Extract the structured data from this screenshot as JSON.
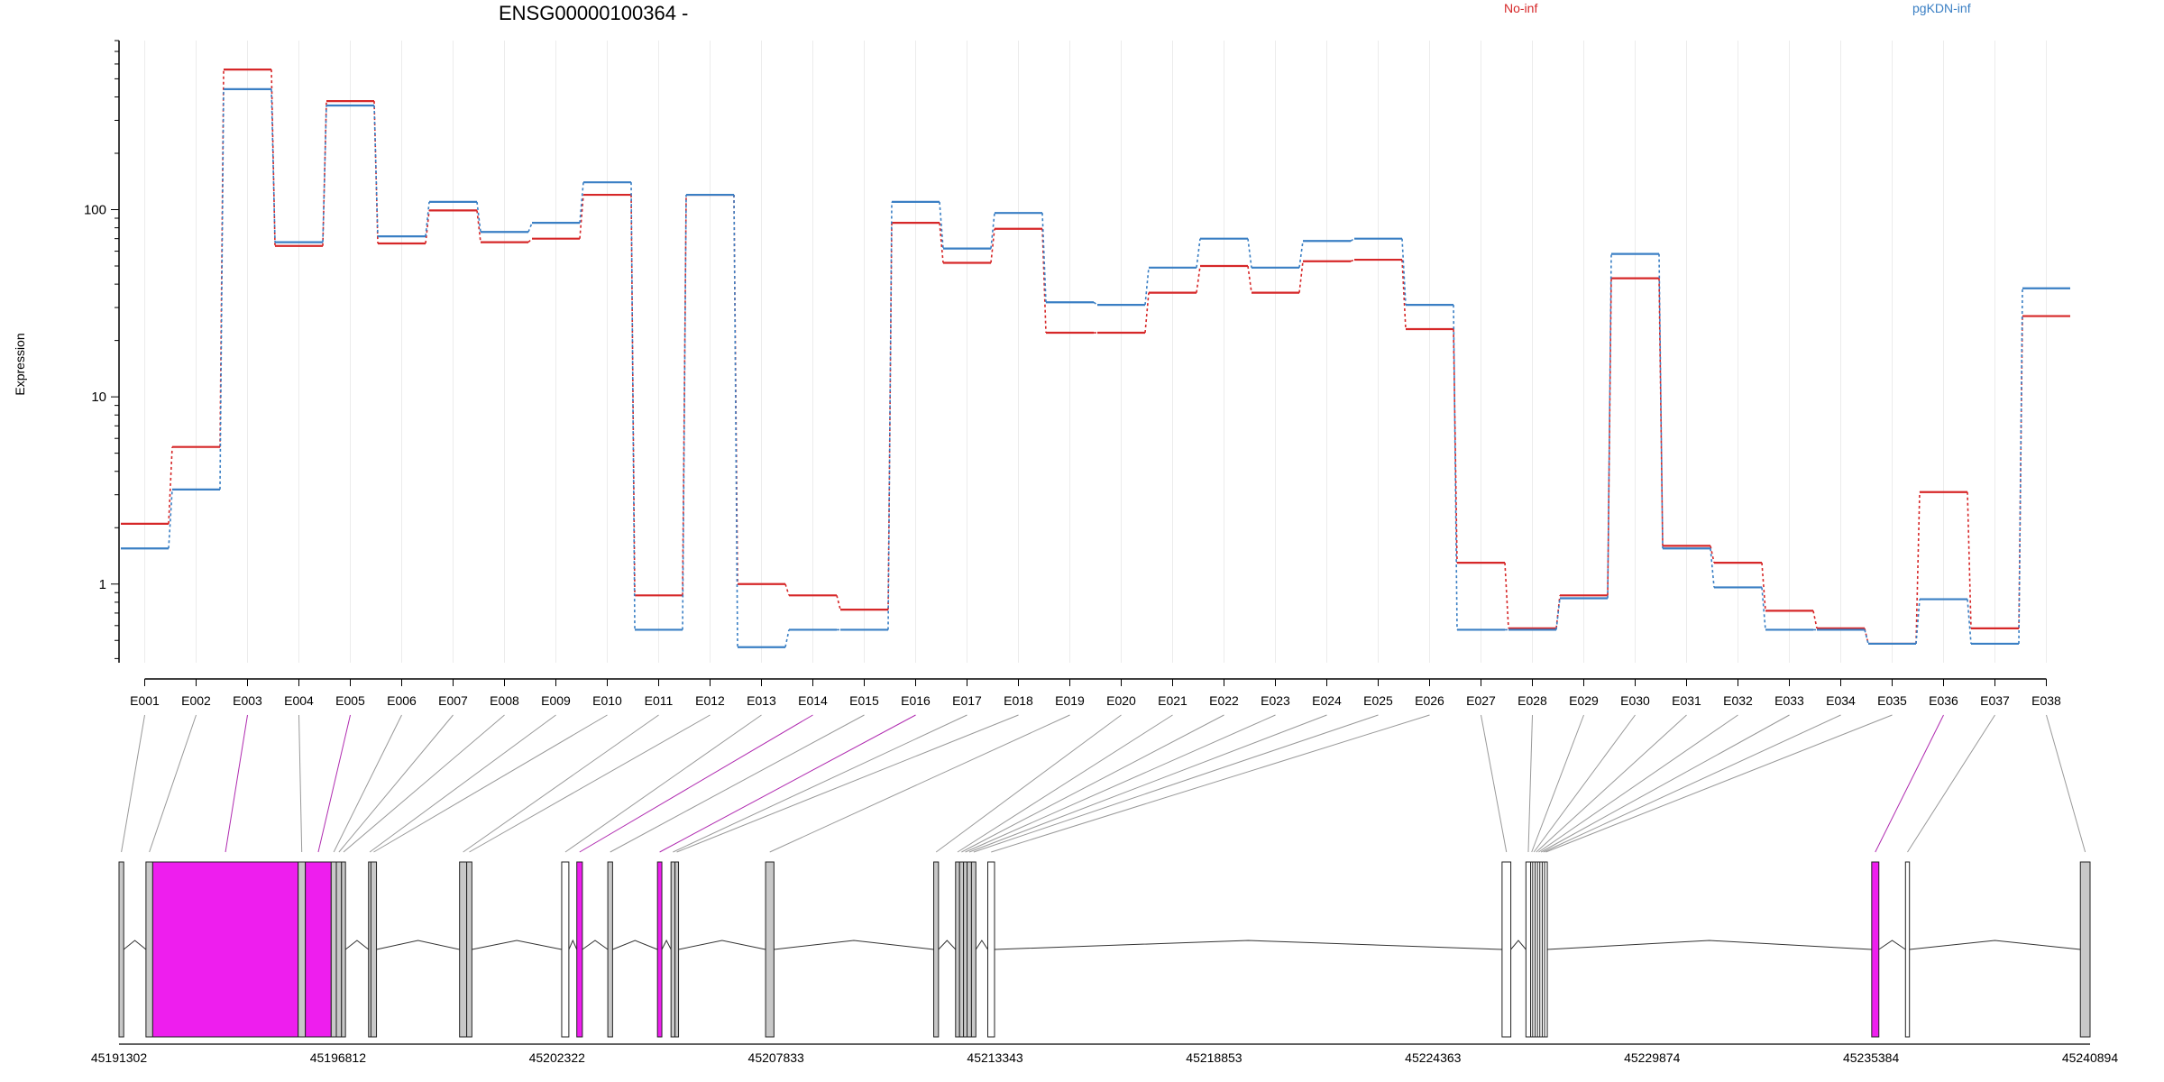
{
  "title": "ENSG00000100364 -",
  "legend": [
    {
      "label": "No-inf",
      "color": "#d62728"
    },
    {
      "label": "pgKDN-inf",
      "color": "#3a7fc4"
    }
  ],
  "chart_data": {
    "type": "line",
    "step": true,
    "ylabel": "Expression",
    "yscale": "log",
    "ylim": [
      0.38,
      800
    ],
    "yticks": [
      {
        "value": 1,
        "label": "1"
      },
      {
        "value": 10,
        "label": "10"
      },
      {
        "value": 100,
        "label": "100"
      }
    ],
    "categories": [
      "E001",
      "E002",
      "E003",
      "E004",
      "E005",
      "E006",
      "E007",
      "E008",
      "E009",
      "E010",
      "E011",
      "E012",
      "E013",
      "E014",
      "E015",
      "E016",
      "E017",
      "E018",
      "E019",
      "E020",
      "E021",
      "E022",
      "E023",
      "E024",
      "E025",
      "E026",
      "E027",
      "E028",
      "E029",
      "E030",
      "E031",
      "E032",
      "E033",
      "E034",
      "E035",
      "E036",
      "E037",
      "E038"
    ],
    "series": [
      {
        "name": "No-inf",
        "color": "#d62728",
        "values": [
          2.1,
          5.4,
          560,
          64,
          380,
          66,
          99,
          67,
          70,
          120,
          0.87,
          120,
          1.0,
          0.87,
          0.73,
          85,
          52,
          79,
          22,
          22,
          36,
          50,
          36,
          53,
          54,
          23,
          1.3,
          0.58,
          0.87,
          43,
          1.6,
          1.3,
          0.72,
          0.58,
          0.48,
          3.1,
          0.58,
          27
        ]
      },
      {
        "name": "pgKDN-inf",
        "color": "#3a7fc4",
        "values": [
          1.55,
          3.2,
          440,
          67,
          360,
          72,
          110,
          76,
          85,
          140,
          0.57,
          120,
          0.46,
          0.57,
          0.57,
          110,
          62,
          96,
          32,
          31,
          49,
          70,
          49,
          68,
          70,
          31,
          0.57,
          0.57,
          0.84,
          58,
          1.55,
          0.96,
          0.57,
          0.57,
          0.48,
          0.83,
          0.48,
          38
        ]
      }
    ]
  },
  "gene_model": {
    "coord_start": 45191302,
    "coord_end": 45240894,
    "coord_ticks": [
      "45191302",
      "45196812",
      "45202322",
      "45207833",
      "45213343",
      "45218853",
      "45224363",
      "45229874",
      "45235384",
      "45240894"
    ],
    "exon_fill": "#c8c8c8",
    "highlight_color": "#ee1eee",
    "open_fill": "#ffffff",
    "exons": [
      {
        "id": "E001",
        "start": 45191302,
        "end": 45191420,
        "style": "gray"
      },
      {
        "id": "E002",
        "start": 45191980,
        "end": 45192150,
        "style": "gray"
      },
      {
        "id": "E003",
        "start": 45192150,
        "end": 45195810,
        "style": "pink"
      },
      {
        "id": "E004",
        "start": 45195810,
        "end": 45195990,
        "style": "gray"
      },
      {
        "id": "E005",
        "start": 45195990,
        "end": 45196640,
        "style": "pink"
      },
      {
        "id": "E006",
        "start": 45196640,
        "end": 45196770,
        "style": "gray"
      },
      {
        "id": "E007",
        "start": 45196770,
        "end": 45196900,
        "style": "gray"
      },
      {
        "id": "E008",
        "start": 45196900,
        "end": 45197000,
        "style": "gray"
      },
      {
        "id": "E009",
        "start": 45197580,
        "end": 45197640,
        "style": "gray"
      },
      {
        "id": "E010",
        "start": 45197640,
        "end": 45197780,
        "style": "gray"
      },
      {
        "id": "E011",
        "start": 45199870,
        "end": 45200050,
        "style": "gray"
      },
      {
        "id": "E012",
        "start": 45200050,
        "end": 45200180,
        "style": "gray"
      },
      {
        "id": "E013",
        "start": 45202440,
        "end": 45202620,
        "style": "open"
      },
      {
        "id": "E014",
        "start": 45202820,
        "end": 45202960,
        "style": "pink"
      },
      {
        "id": "E015",
        "start": 45203600,
        "end": 45203720,
        "style": "gray"
      },
      {
        "id": "E016",
        "start": 45204850,
        "end": 45204960,
        "style": "pink"
      },
      {
        "id": "E017",
        "start": 45205190,
        "end": 45205290,
        "style": "gray"
      },
      {
        "id": "E018",
        "start": 45205290,
        "end": 45205380,
        "style": "gray"
      },
      {
        "id": "E019",
        "start": 45207570,
        "end": 45207780,
        "style": "gray"
      },
      {
        "id": "E020",
        "start": 45211800,
        "end": 45211920,
        "style": "gray"
      },
      {
        "id": "E021",
        "start": 45212350,
        "end": 45212450,
        "style": "gray"
      },
      {
        "id": "E022",
        "start": 45212450,
        "end": 45212550,
        "style": "gray"
      },
      {
        "id": "E023",
        "start": 45212550,
        "end": 45212640,
        "style": "gray"
      },
      {
        "id": "E024",
        "start": 45212640,
        "end": 45212750,
        "style": "gray"
      },
      {
        "id": "E025",
        "start": 45212750,
        "end": 45212860,
        "style": "gray"
      },
      {
        "id": "E026",
        "start": 45213160,
        "end": 45213330,
        "style": "open"
      },
      {
        "id": "E027",
        "start": 45226100,
        "end": 45226320,
        "style": "open"
      },
      {
        "id": "E028",
        "start": 45226700,
        "end": 45226820,
        "style": "open"
      },
      {
        "id": "E029",
        "start": 45226820,
        "end": 45226870,
        "style": "open"
      },
      {
        "id": "E030",
        "start": 45226870,
        "end": 45226930,
        "style": "open"
      },
      {
        "id": "E031",
        "start": 45226930,
        "end": 45226990,
        "style": "open"
      },
      {
        "id": "E032",
        "start": 45226990,
        "end": 45227050,
        "style": "open"
      },
      {
        "id": "E033",
        "start": 45227050,
        "end": 45227110,
        "style": "open"
      },
      {
        "id": "E034",
        "start": 45227110,
        "end": 45227170,
        "style": "open"
      },
      {
        "id": "E035",
        "start": 45227170,
        "end": 45227230,
        "style": "open"
      },
      {
        "id": "E036",
        "start": 45235400,
        "end": 45235580,
        "style": "pink"
      },
      {
        "id": "E037",
        "start": 45236250,
        "end": 45236350,
        "style": "open"
      },
      {
        "id": "E038",
        "start": 45240650,
        "end": 45240894,
        "style": "gray"
      }
    ],
    "pink_connectors": [
      "E003",
      "E005",
      "E014",
      "E016",
      "E036"
    ]
  }
}
